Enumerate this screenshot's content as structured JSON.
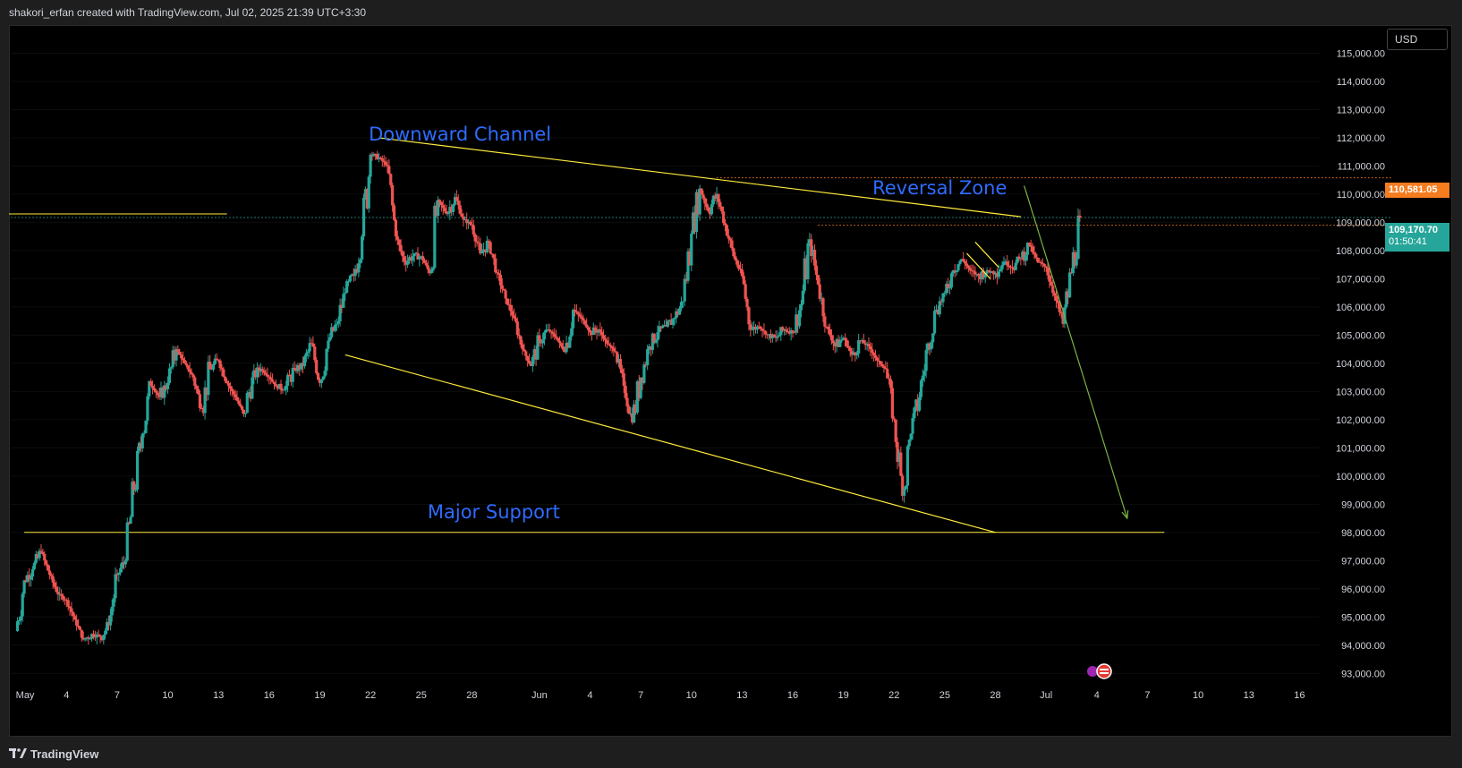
{
  "header": {
    "text": "shakori_erfan created with TradingView.com, Jul 02, 2025 21:39 UTC+3:30"
  },
  "footer": {
    "brand": "TradingView"
  },
  "price_scale": {
    "currency": "USD",
    "level_tag": "110,581.05",
    "last_price": "109,170.70",
    "countdown": "01:50:41"
  },
  "colors": {
    "background": "#000000",
    "up_candle": "#26a69a",
    "down_candle": "#ef5350",
    "trendline": "#ffeb3b",
    "projection_arrow": "#7cb342",
    "annotation_text": "#2f6bff",
    "level_tag": "#f57c1f",
    "last_price_tag": "#26a69a"
  },
  "chart_data": {
    "type": "candlestick",
    "symbol_currency": "USD",
    "ylim": [
      92500,
      116000
    ],
    "y_ticks": [
      93000,
      94000,
      95000,
      96000,
      97000,
      98000,
      99000,
      100000,
      101000,
      102000,
      103000,
      104000,
      105000,
      106000,
      107000,
      108000,
      109000,
      110000,
      111000,
      112000,
      113000,
      114000,
      115000
    ],
    "y_tick_labels": [
      "93,000.00",
      "94,000.00",
      "95,000.00",
      "96,000.00",
      "97,000.00",
      "98,000.00",
      "99,000.00",
      "100,000.00",
      "101,000.00",
      "102,000.00",
      "103,000.00",
      "104,000.00",
      "105,000.00",
      "106,000.00",
      "107,000.00",
      "108,000.00",
      "109,000.00",
      "110,000.00",
      "111,000.00",
      "112,000.00",
      "113,000.00",
      "114,000.00",
      "115,000.00"
    ],
    "x_tick_labels": [
      "May",
      "4",
      "7",
      "10",
      "13",
      "16",
      "19",
      "22",
      "25",
      "28",
      "Jun",
      "4",
      "7",
      "10",
      "13",
      "16",
      "19",
      "22",
      "25",
      "28",
      "Jul",
      "4",
      "7",
      "10",
      "13",
      "16"
    ],
    "x_tick_days": [
      0,
      3,
      6,
      9,
      12,
      15,
      18,
      21,
      24,
      27,
      31,
      34,
      37,
      40,
      43,
      46,
      49,
      52,
      55,
      58,
      61,
      64,
      67,
      70,
      73,
      76
    ],
    "x_start_date": "2025-05-01",
    "closes": [
      [
        0,
        94500
      ],
      [
        0.5,
        96300
      ],
      [
        1,
        96700
      ],
      [
        1.5,
        97300
      ],
      [
        2,
        96500
      ],
      [
        2.5,
        95800
      ],
      [
        3,
        95600
      ],
      [
        3.5,
        94900
      ],
      [
        4,
        94200
      ],
      [
        4.5,
        94400
      ],
      [
        5,
        94300
      ],
      [
        5.5,
        94700
      ],
      [
        6,
        96500
      ],
      [
        6.5,
        97000
      ],
      [
        7,
        99500
      ],
      [
        7.5,
        101500
      ],
      [
        8,
        103200
      ],
      [
        8.5,
        102800
      ],
      [
        9,
        103300
      ],
      [
        9.5,
        104500
      ],
      [
        10,
        104000
      ],
      [
        10.5,
        103500
      ],
      [
        11,
        102400
      ],
      [
        11.5,
        103800
      ],
      [
        12,
        104100
      ],
      [
        12.5,
        103300
      ],
      [
        13,
        102800
      ],
      [
        13.5,
        102200
      ],
      [
        14,
        103500
      ],
      [
        14.5,
        103800
      ],
      [
        15,
        103500
      ],
      [
        15.5,
        103100
      ],
      [
        16,
        103200
      ],
      [
        16.5,
        103800
      ],
      [
        17,
        103900
      ],
      [
        17.5,
        104700
      ],
      [
        18,
        103300
      ],
      [
        18.5,
        104800
      ],
      [
        19,
        105400
      ],
      [
        19.5,
        106500
      ],
      [
        20,
        107100
      ],
      [
        20.5,
        108500
      ],
      [
        21,
        111400
      ],
      [
        21.5,
        111300
      ],
      [
        22,
        111000
      ],
      [
        22.5,
        108500
      ],
      [
        23,
        107600
      ],
      [
        23.5,
        107800
      ],
      [
        24,
        107800
      ],
      [
        24.5,
        107200
      ],
      [
        25,
        109800
      ],
      [
        25.5,
        109300
      ],
      [
        26,
        109900
      ],
      [
        26.5,
        109100
      ],
      [
        27,
        108900
      ],
      [
        27.5,
        107900
      ],
      [
        28,
        108300
      ],
      [
        28.5,
        107200
      ],
      [
        29,
        106300
      ],
      [
        29.5,
        105600
      ],
      [
        30,
        104500
      ],
      [
        30.5,
        103900
      ],
      [
        31,
        104800
      ],
      [
        31.5,
        105200
      ],
      [
        32,
        104900
      ],
      [
        32.5,
        104400
      ],
      [
        33,
        105900
      ],
      [
        33.5,
        105600
      ],
      [
        34,
        105100
      ],
      [
        34.5,
        105200
      ],
      [
        35,
        104700
      ],
      [
        35.5,
        104400
      ],
      [
        36,
        103200
      ],
      [
        36.5,
        101900
      ],
      [
        37,
        103500
      ],
      [
        37.5,
        104600
      ],
      [
        38,
        105100
      ],
      [
        38.5,
        105300
      ],
      [
        39,
        105600
      ],
      [
        39.5,
        106200
      ],
      [
        40,
        108600
      ],
      [
        40.5,
        110200
      ],
      [
        41,
        109400
      ],
      [
        41.5,
        110000
      ],
      [
        42,
        108900
      ],
      [
        42.5,
        107800
      ],
      [
        43,
        107100
      ],
      [
        43.5,
        105200
      ],
      [
        44,
        105300
      ],
      [
        44.5,
        105000
      ],
      [
        45,
        104900
      ],
      [
        45.5,
        105200
      ],
      [
        46,
        105100
      ],
      [
        46.5,
        106100
      ],
      [
        47,
        108400
      ],
      [
        47.5,
        106800
      ],
      [
        48,
        105300
      ],
      [
        48.5,
        104600
      ],
      [
        49,
        104900
      ],
      [
        49.5,
        104300
      ],
      [
        50,
        104800
      ],
      [
        50.5,
        104600
      ],
      [
        51,
        104100
      ],
      [
        51.5,
        103800
      ],
      [
        52,
        102000
      ],
      [
        52.5,
        99300
      ],
      [
        53,
        101500
      ],
      [
        53.5,
        102800
      ],
      [
        54,
        104700
      ],
      [
        54.5,
        105900
      ],
      [
        55,
        106500
      ],
      [
        55.5,
        107300
      ],
      [
        56,
        107700
      ],
      [
        56.5,
        107300
      ],
      [
        57,
        107100
      ],
      [
        57.5,
        107300
      ],
      [
        58,
        107200
      ],
      [
        58.5,
        107600
      ],
      [
        59,
        107400
      ],
      [
        59.5,
        107700
      ],
      [
        60,
        108200
      ],
      [
        60.5,
        107600
      ],
      [
        61,
        107400
      ],
      [
        61.5,
        106400
      ],
      [
        62,
        105400
      ],
      [
        62.5,
        107200
      ],
      [
        63,
        109170.7
      ]
    ],
    "horizontal_levels": [
      {
        "price": 98000,
        "from_day": 0.5,
        "to_day": 68,
        "color": "#ffeb3b"
      },
      {
        "price": 109300,
        "from_day": -0.5,
        "to_day": 12.5,
        "color": "#ffeb3b"
      },
      {
        "price": 110581.05,
        "from_day": 41.5,
        "to_day": 82,
        "color": "#f57c1f",
        "dotted": true
      },
      {
        "price": 109170.7,
        "from_day": -0.5,
        "to_day": 82,
        "color": "#26a69a",
        "dotted": true
      },
      {
        "price": 108900,
        "from_day": 47.5,
        "to_day": 82,
        "color": "#f57c1f",
        "dotted": true
      }
    ],
    "trendlines": [
      {
        "from": [
          21.5,
          112000
        ],
        "to": [
          59.5,
          109200
        ]
      },
      {
        "from": [
          19.5,
          104300
        ],
        "to": [
          58,
          98000
        ]
      },
      {
        "from": [
          56.8,
          108300
        ],
        "to": [
          58.2,
          107400
        ]
      },
      {
        "from": [
          56.3,
          107900
        ],
        "to": [
          57.7,
          107000
        ]
      }
    ],
    "projection_arrow": {
      "from": [
        59.7,
        110300
      ],
      "to": [
        65.8,
        98500
      ]
    },
    "annotations": [
      {
        "text": "Downward Channel",
        "day": 26.3,
        "price": 111900
      },
      {
        "text": "Reversal Zone",
        "day": 54.7,
        "price": 110000
      },
      {
        "text": "Major Support",
        "day": 28.3,
        "price": 98500
      }
    ]
  }
}
